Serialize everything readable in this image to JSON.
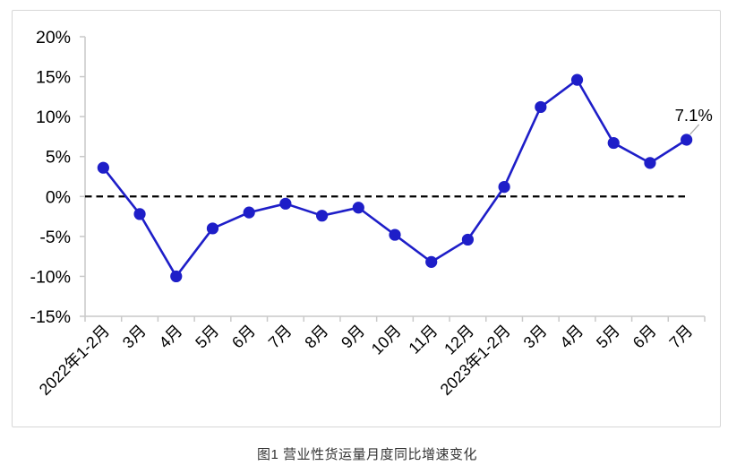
{
  "chart_data": {
    "type": "line",
    "title": "图1 营业性货运量月度同比增速变化",
    "categories": [
      "2022年1-2月",
      "3月",
      "4月",
      "5月",
      "6月",
      "7月",
      "8月",
      "9月",
      "10月",
      "11月",
      "12月",
      "2023年1-2月",
      "3月",
      "4月",
      "5月",
      "6月",
      "7月"
    ],
    "values": [
      3.6,
      -2.2,
      -10.0,
      -4.0,
      -2.0,
      -0.9,
      -2.4,
      -1.4,
      -4.8,
      -8.2,
      -5.4,
      1.2,
      11.2,
      14.6,
      6.7,
      4.2,
      7.1
    ],
    "unit": "%",
    "ylim": [
      -15,
      20
    ],
    "ytick_step": 5,
    "ytick_labels": [
      "20%",
      "15%",
      "10%",
      "5%",
      "0%",
      "-5%",
      "-10%",
      "-15%"
    ],
    "grid": false,
    "legend": "none",
    "zero_line": {
      "style": "dashed",
      "color": "#000000"
    },
    "annotation": {
      "text": "7.1%",
      "target_index": 16
    },
    "colors": {
      "line": "#1e1ec8",
      "marker": "#1e1ec8",
      "axis": "#c9c9c9",
      "tick_label": "#000000",
      "annotation_text": "#000000",
      "leader": "#aaaaaa"
    }
  }
}
